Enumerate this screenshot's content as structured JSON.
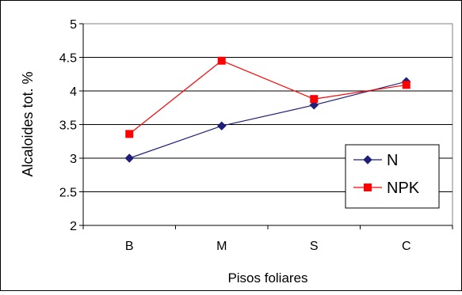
{
  "chart_data": {
    "type": "line",
    "title": "",
    "xlabel": "Pisos foliares",
    "ylabel": "Alcaloides tot. %",
    "categories": [
      "B",
      "M",
      "S",
      "C"
    ],
    "ylim": [
      2,
      5
    ],
    "yticks": [
      "2",
      "2.5",
      "3",
      "3.5",
      "4",
      "4.5",
      "5"
    ],
    "grid": "horizontal",
    "legend_position": "right",
    "series": [
      {
        "name": "N",
        "values": [
          3.0,
          3.48,
          3.79,
          4.14
        ],
        "color": "#1f1f7a",
        "marker": "diamond"
      },
      {
        "name": "NPK",
        "values": [
          3.36,
          4.45,
          3.88,
          4.09
        ],
        "color": "#ff0000",
        "marker": "square"
      }
    ]
  }
}
